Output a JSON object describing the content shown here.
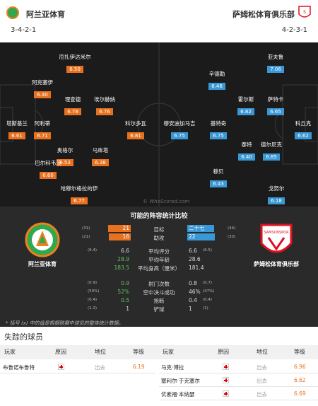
{
  "home": {
    "name": "阿兰亚体育",
    "formation": "3-4-2-1",
    "color": "#e8711f",
    "players": [
      {
        "name": "厄扎伊达米尔",
        "rating": "6.50"
      },
      {
        "name": "阿克塞伊",
        "rating": "6.40"
      },
      {
        "name": "理查德",
        "rating": "6.78"
      },
      {
        "name": "埃尔赫纳",
        "rating": "6.76"
      },
      {
        "name": "塔斯基兰",
        "rating": "6.61"
      },
      {
        "name": "阿利蒂",
        "rating": "6.71"
      },
      {
        "name": "科尔多瓦",
        "rating": "6.81"
      },
      {
        "name": "奥格尔",
        "rating": "6.53"
      },
      {
        "name": "马库塔",
        "rating": "6.38"
      },
      {
        "name": "巴尔科韦茨",
        "rating": "6.60"
      },
      {
        "name": "哈穆尔格拉的伊",
        "rating": "6.77"
      }
    ]
  },
  "away": {
    "name": "萨姆松体育俱乐部",
    "formation": "4-2-3-1",
    "color": "#3a98d6",
    "players": [
      {
        "name": "亚夫鲁",
        "rating": "7.06"
      },
      {
        "name": "辛德勒",
        "rating": "6.46"
      },
      {
        "name": "霍尔斯",
        "rating": "6.82"
      },
      {
        "name": "萨特卡",
        "rating": "6.65"
      },
      {
        "name": "穆安迪加马吉",
        "rating": "6.75"
      },
      {
        "name": "基特奇",
        "rating": "6.75"
      },
      {
        "name": "科丘克",
        "rating": "6.62"
      },
      {
        "name": "泰特",
        "rating": "6.40"
      },
      {
        "name": "德尔尼克",
        "rating": "6.85"
      },
      {
        "name": "穆贝",
        "rating": "6.43"
      },
      {
        "name": "戈努尔",
        "rating": "6.18"
      }
    ]
  },
  "watermark": "© WhoScored.com",
  "comparison": {
    "title": "可能的阵容统计比较",
    "bars": [
      {
        "label": "目标",
        "home": "21",
        "home_paren": "(31)",
        "away": "二十七",
        "away_paren": "(44)",
        "home_frac": 0.44,
        "away_frac": 0.56
      },
      {
        "label": "助攻",
        "home": "16",
        "home_paren": "(21)",
        "away": "22",
        "away_paren": "(33)",
        "home_frac": 0.42,
        "away_frac": 0.58
      }
    ],
    "stats": [
      {
        "label": "平均评分",
        "home": "6.6",
        "home_paren": "(6.4)",
        "away": "6.6",
        "away_paren": "(6.5)",
        "home_color": "#ddd"
      },
      {
        "label": "平均年龄",
        "home": "28.9",
        "home_paren": "",
        "away": "28.6",
        "away_paren": "",
        "home_color": "#5fc35f"
      },
      {
        "label": "平均身高（厘米）",
        "home": "183.5",
        "home_paren": "",
        "away": "181.4",
        "away_paren": "",
        "home_color": "#5fc35f"
      },
      {
        "label": "射门次数",
        "home": "0.9",
        "home_paren": "(0.9)",
        "away": "0.8",
        "away_paren": "(0.7)",
        "home_color": "#5fc35f"
      },
      {
        "label": "空中决斗成功",
        "home": "52%",
        "home_paren": "(50%)",
        "away": "46%",
        "away_paren": "(47%)",
        "home_color": "#5fc35f"
      },
      {
        "label": "抢断",
        "home": "0.5",
        "home_paren": "(0.4)",
        "away": "0.4",
        "away_paren": "(0.4)",
        "home_color": "#5fc35f"
      },
      {
        "label": "铲球",
        "home": "1",
        "home_paren": "(1.2)",
        "away": "1",
        "away_paren": "(1)",
        "home_color": "#ddd"
      }
    ],
    "note": "* 括号 (x) 中的值是根据联赛中球员的整体统计数据。"
  },
  "missing": {
    "title": "失踪的球员",
    "headers": {
      "player": "玩家",
      "reason": "原因",
      "position": "地位",
      "rating": "等级"
    },
    "home": [
      {
        "player": "布鲁诺布鲁特",
        "position": "出去",
        "rating": "6.19"
      }
    ],
    "away": [
      {
        "player": "马克·博拉",
        "position": "出去",
        "rating": "6.96"
      },
      {
        "player": "塞利尔·于克塞尔",
        "position": "出去",
        "rating": "6.62"
      },
      {
        "player": "优素福·本纳瑟",
        "position": "出去",
        "rating": "6.69"
      }
    ]
  }
}
